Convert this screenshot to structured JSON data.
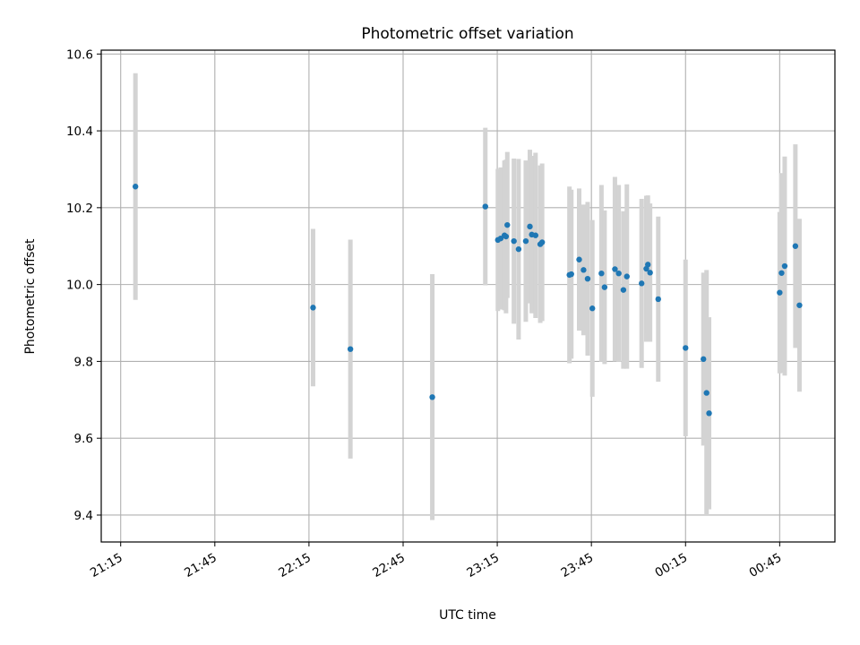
{
  "chart_data": {
    "type": "scatter",
    "title": "Photometric offset variation",
    "xlabel": "UTC time",
    "ylabel": "Photometric offset",
    "x_ticks": [
      "21:15",
      "21:45",
      "22:15",
      "22:45",
      "23:15",
      "23:45",
      "00:15",
      "00:45"
    ],
    "x_tick_minutes": [
      0,
      30,
      60,
      90,
      120,
      150,
      180,
      210
    ],
    "x_range_minutes": [
      -6.2,
      227.6
    ],
    "y_ticks": [
      9.4,
      9.6,
      9.8,
      10.0,
      10.2,
      10.4,
      10.6
    ],
    "ylim": [
      9.33,
      10.61
    ],
    "grid": true,
    "colors": {
      "point": "#1f77b4",
      "errorbar": "#d3d3d3",
      "grid": "#b0b0b0"
    },
    "series": [
      {
        "x_minutes": [
          4.7,
          61.3,
          73.2,
          99.3,
          116.2,
          120.2,
          121.1,
          122.3,
          122.8,
          123.2,
          125.3,
          126.8,
          129.1,
          130.4,
          131.0,
          132.2,
          133.7,
          134.3,
          143.0,
          143.6,
          146.1,
          147.5,
          148.8,
          150.3,
          153.2,
          154.2,
          157.5,
          158.7,
          160.2,
          161.3,
          166.0,
          167.5,
          168.0,
          168.7,
          171.3,
          180.0,
          185.7,
          186.7,
          187.5,
          210.0,
          210.6,
          211.6,
          215.0,
          216.3
        ],
        "y": [
          10.255,
          9.94,
          9.832,
          9.707,
          10.203,
          10.116,
          10.12,
          10.128,
          10.125,
          10.155,
          10.113,
          10.092,
          10.113,
          10.151,
          10.13,
          10.128,
          10.105,
          10.11,
          10.025,
          10.027,
          10.065,
          10.038,
          10.015,
          9.938,
          10.029,
          9.993,
          10.04,
          10.029,
          9.986,
          10.021,
          10.003,
          10.041,
          10.052,
          10.031,
          9.962,
          9.835,
          9.806,
          9.718,
          9.665,
          9.979,
          10.03,
          10.048,
          10.1,
          9.946
        ],
        "err": [
          0.295,
          0.205,
          0.285,
          0.32,
          0.205,
          0.185,
          0.185,
          0.195,
          0.2,
          0.19,
          0.215,
          0.235,
          0.21,
          0.2,
          0.205,
          0.215,
          0.205,
          0.205,
          0.23,
          0.22,
          0.185,
          0.17,
          0.2,
          0.23,
          0.23,
          0.2,
          0.24,
          0.23,
          0.205,
          0.24,
          0.22,
          0.19,
          0.18,
          0.18,
          0.215,
          0.23,
          0.225,
          0.32,
          0.25,
          0.21,
          0.26,
          0.285,
          0.265,
          0.225
        ]
      }
    ]
  }
}
